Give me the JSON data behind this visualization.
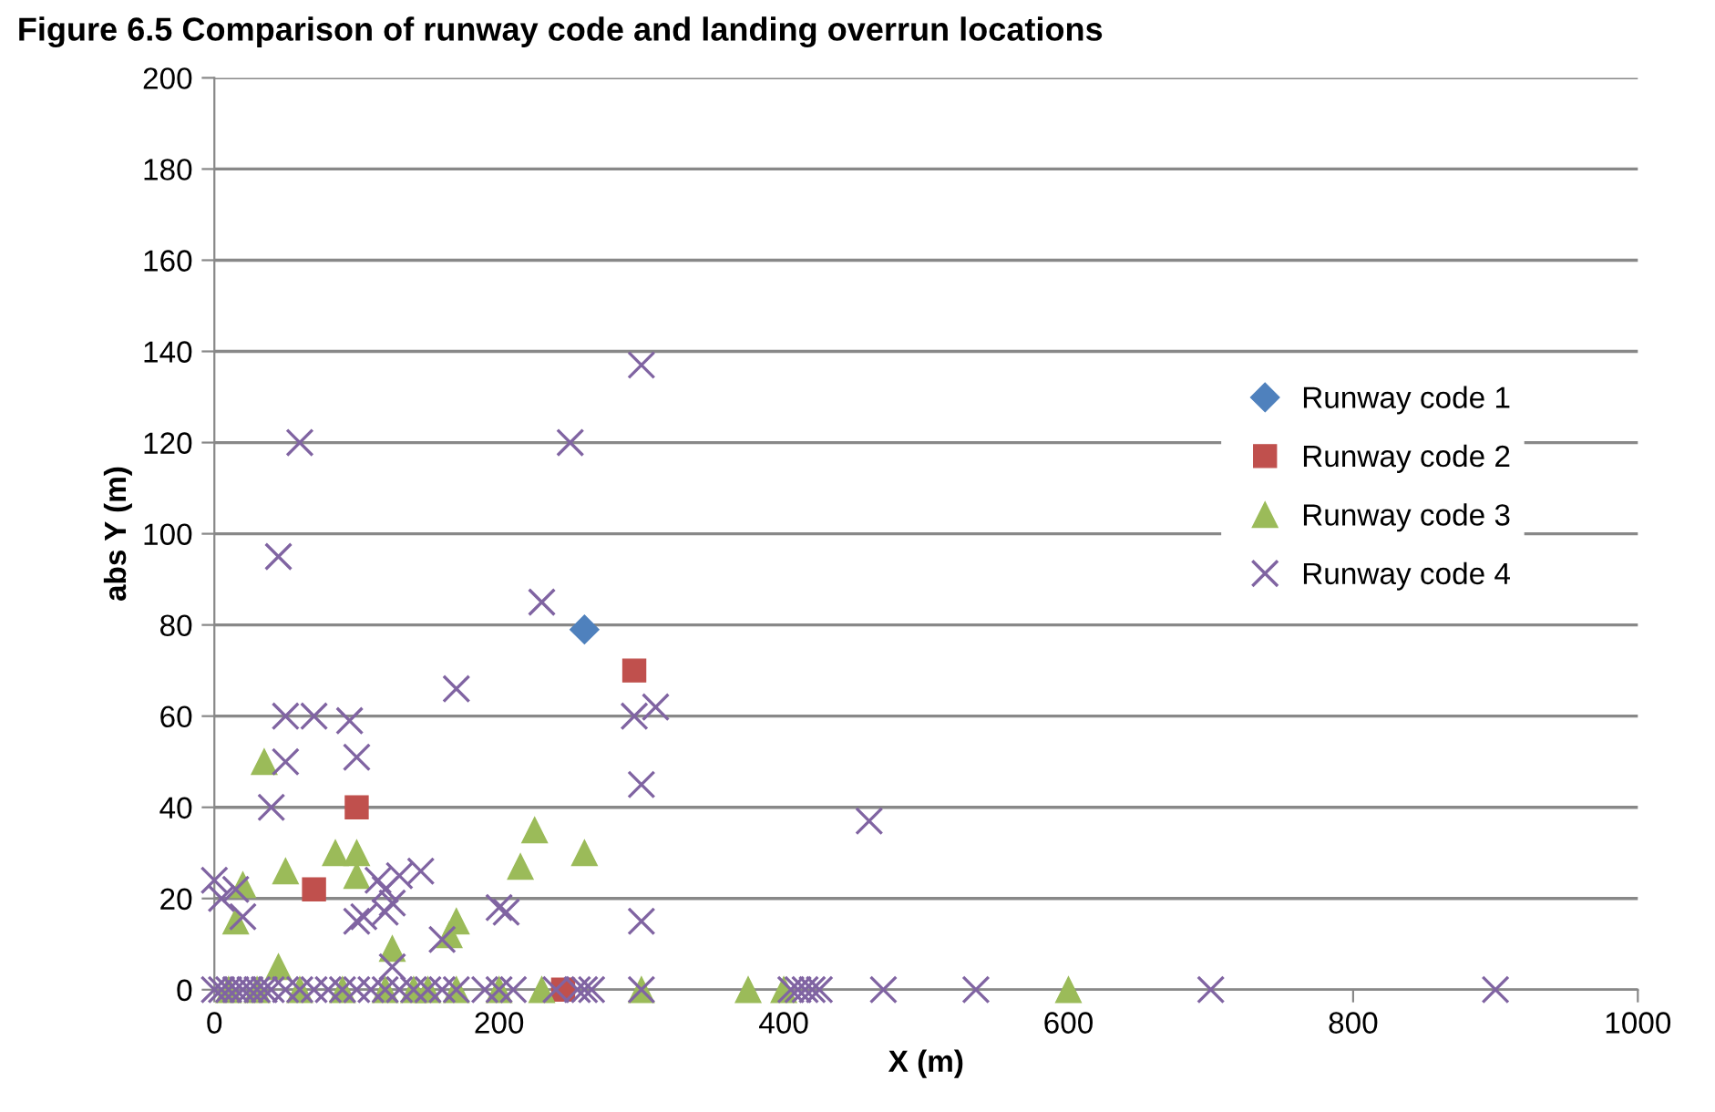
{
  "chart_data": {
    "type": "scatter",
    "title": "Figure 6.5 Comparison of runway code and landing overrun locations",
    "xlabel": "X (m)",
    "ylabel": "abs Y (m)",
    "series": [
      {
        "name": "Runway code 1",
        "color": "#4f81bd",
        "marker": "diamond",
        "x": [
          260
        ],
        "values": [
          79
        ]
      },
      {
        "name": "Runway code 2",
        "color": "#c0504d",
        "marker": "square",
        "x": [
          70,
          100,
          295,
          245
        ],
        "values": [
          22,
          40,
          70,
          0
        ]
      },
      {
        "name": "Runway code 3",
        "color": "#9bbb59",
        "marker": "triangle",
        "x": [
          15,
          20,
          35,
          50,
          45,
          85,
          100,
          100,
          125,
          170,
          165,
          215,
          225,
          260,
          10,
          30,
          60,
          90,
          120,
          140,
          150,
          170,
          200,
          230,
          300,
          375,
          400,
          600
        ],
        "values": [
          15,
          23,
          50,
          26,
          5,
          30,
          30,
          25,
          9,
          15,
          12,
          27,
          35,
          30,
          0,
          0,
          0,
          0,
          0,
          0,
          0,
          0,
          0,
          0,
          0,
          0,
          0,
          0
        ]
      },
      {
        "name": "Runway code 4",
        "color": "#8064a2",
        "marker": "cross",
        "x": [
          0,
          5,
          15,
          20,
          40,
          45,
          50,
          50,
          60,
          70,
          95,
          100,
          100,
          105,
          115,
          120,
          125,
          120,
          130,
          145,
          125,
          160,
          170,
          200,
          205,
          230,
          250,
          295,
          300,
          300,
          300,
          310,
          460,
          0,
          5,
          10,
          15,
          20,
          25,
          30,
          35,
          40,
          50,
          60,
          70,
          80,
          90,
          100,
          110,
          120,
          130,
          140,
          150,
          160,
          170,
          190,
          200,
          210,
          240,
          255,
          260,
          265,
          300,
          405,
          410,
          415,
          420,
          425,
          470,
          535,
          700,
          900
        ],
        "values": [
          24,
          20,
          22,
          16,
          40,
          95,
          60,
          50,
          120,
          60,
          59,
          51,
          15,
          16,
          24,
          22,
          19,
          17,
          25,
          26,
          5,
          11,
          66,
          18,
          17,
          85,
          120,
          60,
          137,
          45,
          15,
          62,
          37,
          0,
          0,
          0,
          0,
          0,
          0,
          0,
          0,
          0,
          0,
          0,
          0,
          0,
          0,
          0,
          0,
          0,
          0,
          0,
          0,
          0,
          0,
          0,
          0,
          0,
          0,
          0,
          0,
          0,
          0,
          0,
          0,
          0,
          0,
          0,
          0,
          0,
          0,
          0
        ]
      }
    ],
    "xlim": [
      0,
      1000
    ],
    "xticks": [
      0,
      200,
      400,
      600,
      800,
      1000
    ],
    "ylim": [
      0,
      200
    ],
    "yticks": [
      0,
      20,
      40,
      60,
      80,
      100,
      120,
      140,
      160,
      180,
      200
    ],
    "grid": "y",
    "legend": "right"
  }
}
